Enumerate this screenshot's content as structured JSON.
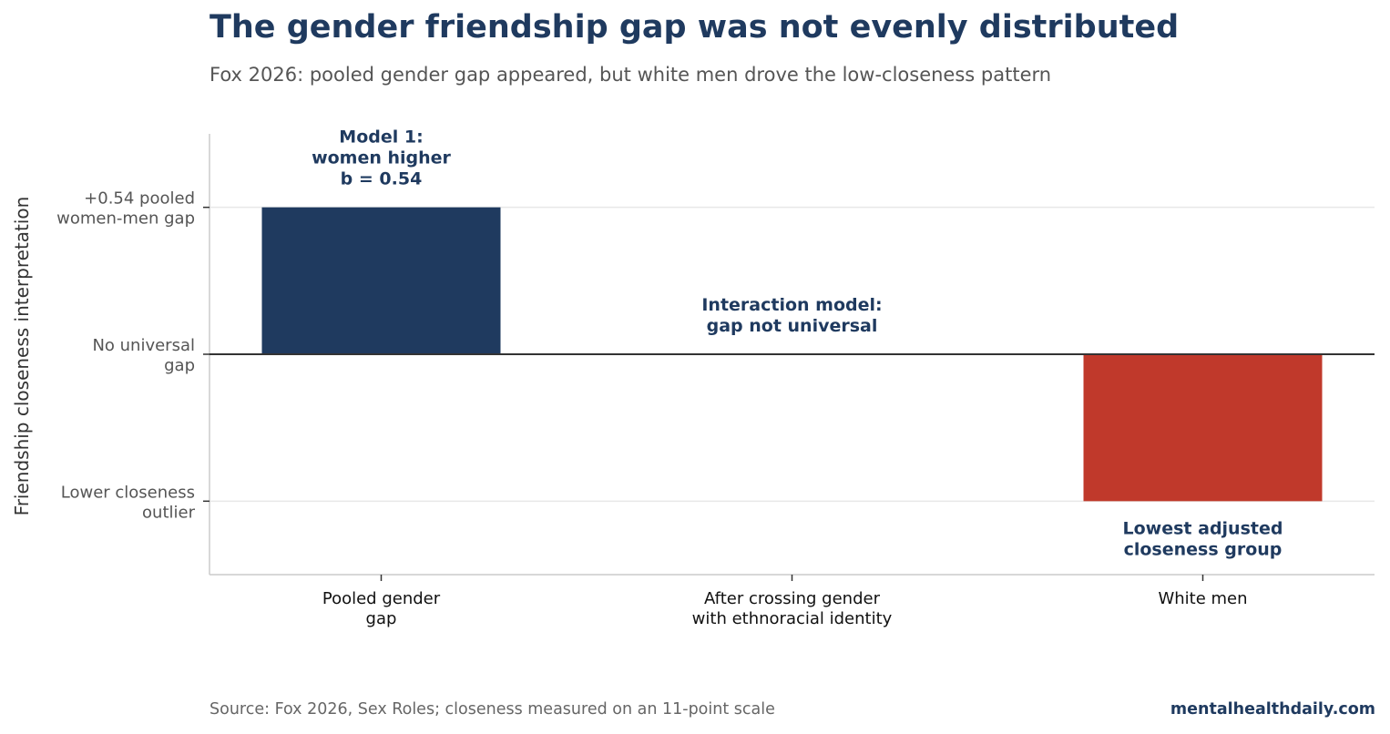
{
  "title": "The gender friendship gap was not evenly distributed",
  "subtitle": "Fox 2026: pooled gender gap appeared, but white men drove the low-closeness pattern",
  "footer": {
    "source": "Source: Fox 2026, Sex Roles; closeness measured on an 11-point scale",
    "brand": "mentalhealthdaily.com"
  },
  "chart_data": {
    "type": "bar",
    "categories": [
      [
        "Pooled gender",
        "gap"
      ],
      [
        "After crossing gender",
        "with ethnoracial identity"
      ],
      [
        "White men"
      ]
    ],
    "values": [
      1,
      0,
      -1
    ],
    "bar_colors": [
      "#1f3a5f",
      "#1f3a5f",
      "#c0392b"
    ],
    "ylabel": "Friendship closeness interpretation",
    "ylim": [
      -1.5,
      1.5
    ],
    "yticks": [
      {
        "value": 1,
        "lines": [
          "+0.54 pooled",
          "women-men gap"
        ]
      },
      {
        "value": 0,
        "lines": [
          "No universal",
          "gap"
        ]
      },
      {
        "value": -1,
        "lines": [
          "Lower closeness",
          "outlier"
        ]
      }
    ],
    "annotations": [
      {
        "category_index": 0,
        "anchor": "above",
        "value": 1,
        "lines": [
          "Model 1:",
          "women higher",
          "b = 0.54"
        ]
      },
      {
        "category_index": 1,
        "anchor": "above",
        "value": 0,
        "lines": [
          "Interaction model:",
          "gap not universal"
        ]
      },
      {
        "category_index": 2,
        "anchor": "below",
        "value": -1,
        "lines": [
          "Lowest adjusted",
          "closeness group"
        ]
      }
    ],
    "grid": "horizontal",
    "zero_line": true
  }
}
